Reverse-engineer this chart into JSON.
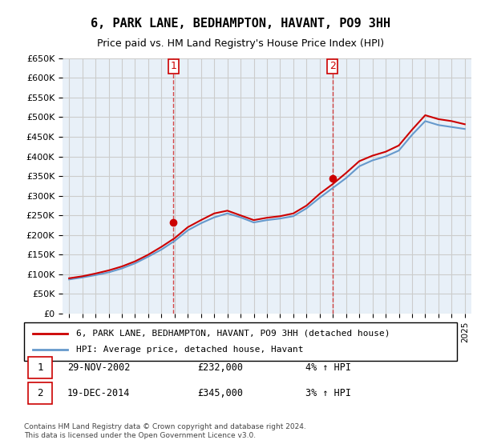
{
  "title": "6, PARK LANE, BEDHAMPTON, HAVANT, PO9 3HH",
  "subtitle": "Price paid vs. HM Land Registry's House Price Index (HPI)",
  "xlabel": "",
  "ylabel": "",
  "ylim": [
    0,
    650000
  ],
  "yticks": [
    0,
    50000,
    100000,
    150000,
    200000,
    250000,
    300000,
    350000,
    400000,
    450000,
    500000,
    550000,
    600000,
    650000
  ],
  "ytick_labels": [
    "£0",
    "£50K",
    "£100K",
    "£150K",
    "£200K",
    "£250K",
    "£300K",
    "£350K",
    "£400K",
    "£450K",
    "£500K",
    "£550K",
    "£600K",
    "£650K"
  ],
  "legend_entries": [
    "6, PARK LANE, BEDHAMPTON, HAVANT, PO9 3HH (detached house)",
    "HPI: Average price, detached house, Havant"
  ],
  "sale1_date": "29-NOV-2002",
  "sale1_price": 232000,
  "sale1_label": "£232,000",
  "sale1_pct": "4% ↑ HPI",
  "sale1_year": 2002.91,
  "sale2_date": "19-DEC-2014",
  "sale2_price": 345000,
  "sale2_label": "£345,000",
  "sale2_pct": "3% ↑ HPI",
  "sale2_year": 2014.96,
  "footer": "Contains HM Land Registry data © Crown copyright and database right 2024.\nThis data is licensed under the Open Government Licence v3.0.",
  "line_color_red": "#cc0000",
  "line_color_blue": "#6699cc",
  "background_color": "#ffffff",
  "grid_color": "#cccccc",
  "hpi_years": [
    1995,
    1996,
    1997,
    1998,
    1999,
    2000,
    2001,
    2002,
    2003,
    2004,
    2005,
    2006,
    2007,
    2008,
    2009,
    2010,
    2011,
    2012,
    2013,
    2014,
    2015,
    2016,
    2017,
    2018,
    2019,
    2020,
    2021,
    2022,
    2023,
    2024,
    2025
  ],
  "hpi_values": [
    87000,
    92000,
    98000,
    105000,
    115000,
    128000,
    145000,
    163000,
    185000,
    212000,
    230000,
    245000,
    255000,
    245000,
    232000,
    238000,
    242000,
    248000,
    268000,
    295000,
    320000,
    345000,
    375000,
    390000,
    400000,
    415000,
    455000,
    490000,
    480000,
    475000,
    470000
  ],
  "price_years": [
    1995,
    1996,
    1997,
    1998,
    1999,
    2000,
    2001,
    2002,
    2003,
    2004,
    2005,
    2006,
    2007,
    2008,
    2009,
    2010,
    2011,
    2012,
    2013,
    2014,
    2015,
    2016,
    2017,
    2018,
    2019,
    2020,
    2021,
    2022,
    2023,
    2024,
    2025
  ],
  "price_values": [
    90000,
    95000,
    102000,
    110000,
    120000,
    133000,
    150000,
    170000,
    192000,
    220000,
    238000,
    255000,
    262000,
    250000,
    238000,
    244000,
    248000,
    255000,
    275000,
    305000,
    330000,
    358000,
    388000,
    402000,
    412000,
    428000,
    468000,
    505000,
    495000,
    490000,
    482000
  ]
}
